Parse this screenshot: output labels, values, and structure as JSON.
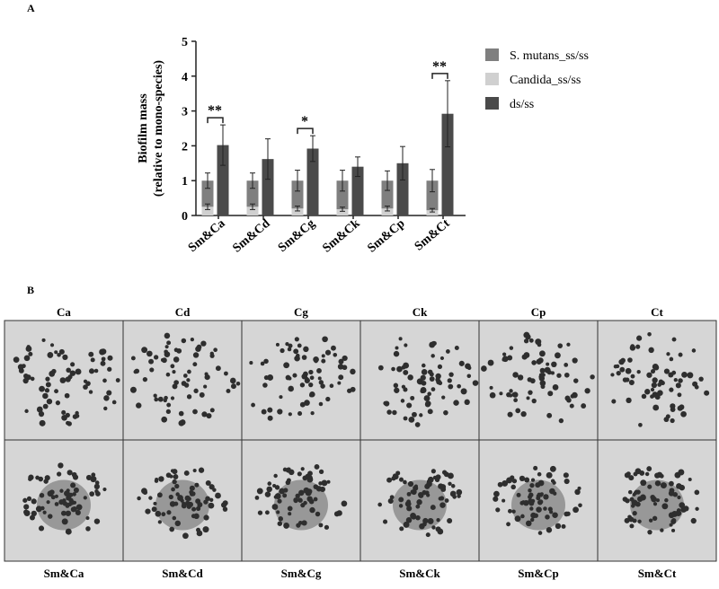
{
  "panel_a_label": "A",
  "panel_b_label": "B",
  "chart_data": {
    "type": "bar",
    "stacked": true,
    "y_label": [
      "Biofilm mass",
      "(relative to mono-species)"
    ],
    "categories": [
      "Sm&Ca",
      "Sm&Cd",
      "Sm&Cg",
      "Sm&Ck",
      "Sm&Cp",
      "Sm&Ct"
    ],
    "series": [
      {
        "name": "S. mutans_ss/ss",
        "color": "#7f7f7f",
        "stack": "ss",
        "values": [
          0.75,
          0.75,
          0.8,
          0.82,
          0.8,
          0.85
        ],
        "errors": [
          0.22,
          0.22,
          0.3,
          0.3,
          0.28,
          0.32
        ]
      },
      {
        "name": "Candida_ss/ss",
        "color": "#d0d0d0",
        "stack": "ss",
        "values": [
          0.25,
          0.25,
          0.2,
          0.18,
          0.2,
          0.15
        ],
        "errors": [
          0.08,
          0.08,
          0.07,
          0.06,
          0.07,
          0.05
        ]
      },
      {
        "name": "ds/ss",
        "color": "#4a4a4a",
        "stack": "ds",
        "values": [
          2.02,
          1.62,
          1.92,
          1.4,
          1.5,
          2.92
        ],
        "errors": [
          0.58,
          0.58,
          0.37,
          0.28,
          0.48,
          0.95
        ]
      }
    ],
    "ylim": [
      0,
      5
    ],
    "yticks": [
      0,
      1,
      2,
      3,
      4,
      5
    ],
    "annotations": [
      {
        "text": "**",
        "category": "Sm&Ca"
      },
      {
        "text": "*",
        "category": "Sm&Cg"
      },
      {
        "text": "**",
        "category": "Sm&Ct"
      }
    ],
    "legend": "right"
  },
  "micrographs": {
    "top_labels": [
      "Ca",
      "Cd",
      "Cg",
      "Ck",
      "Cp",
      "Ct"
    ],
    "bottom_labels": [
      "Sm&Ca",
      "Sm&Cd",
      "Sm&Cg",
      "Sm&Ck",
      "Sm&Cp",
      "Sm&Ct"
    ]
  }
}
